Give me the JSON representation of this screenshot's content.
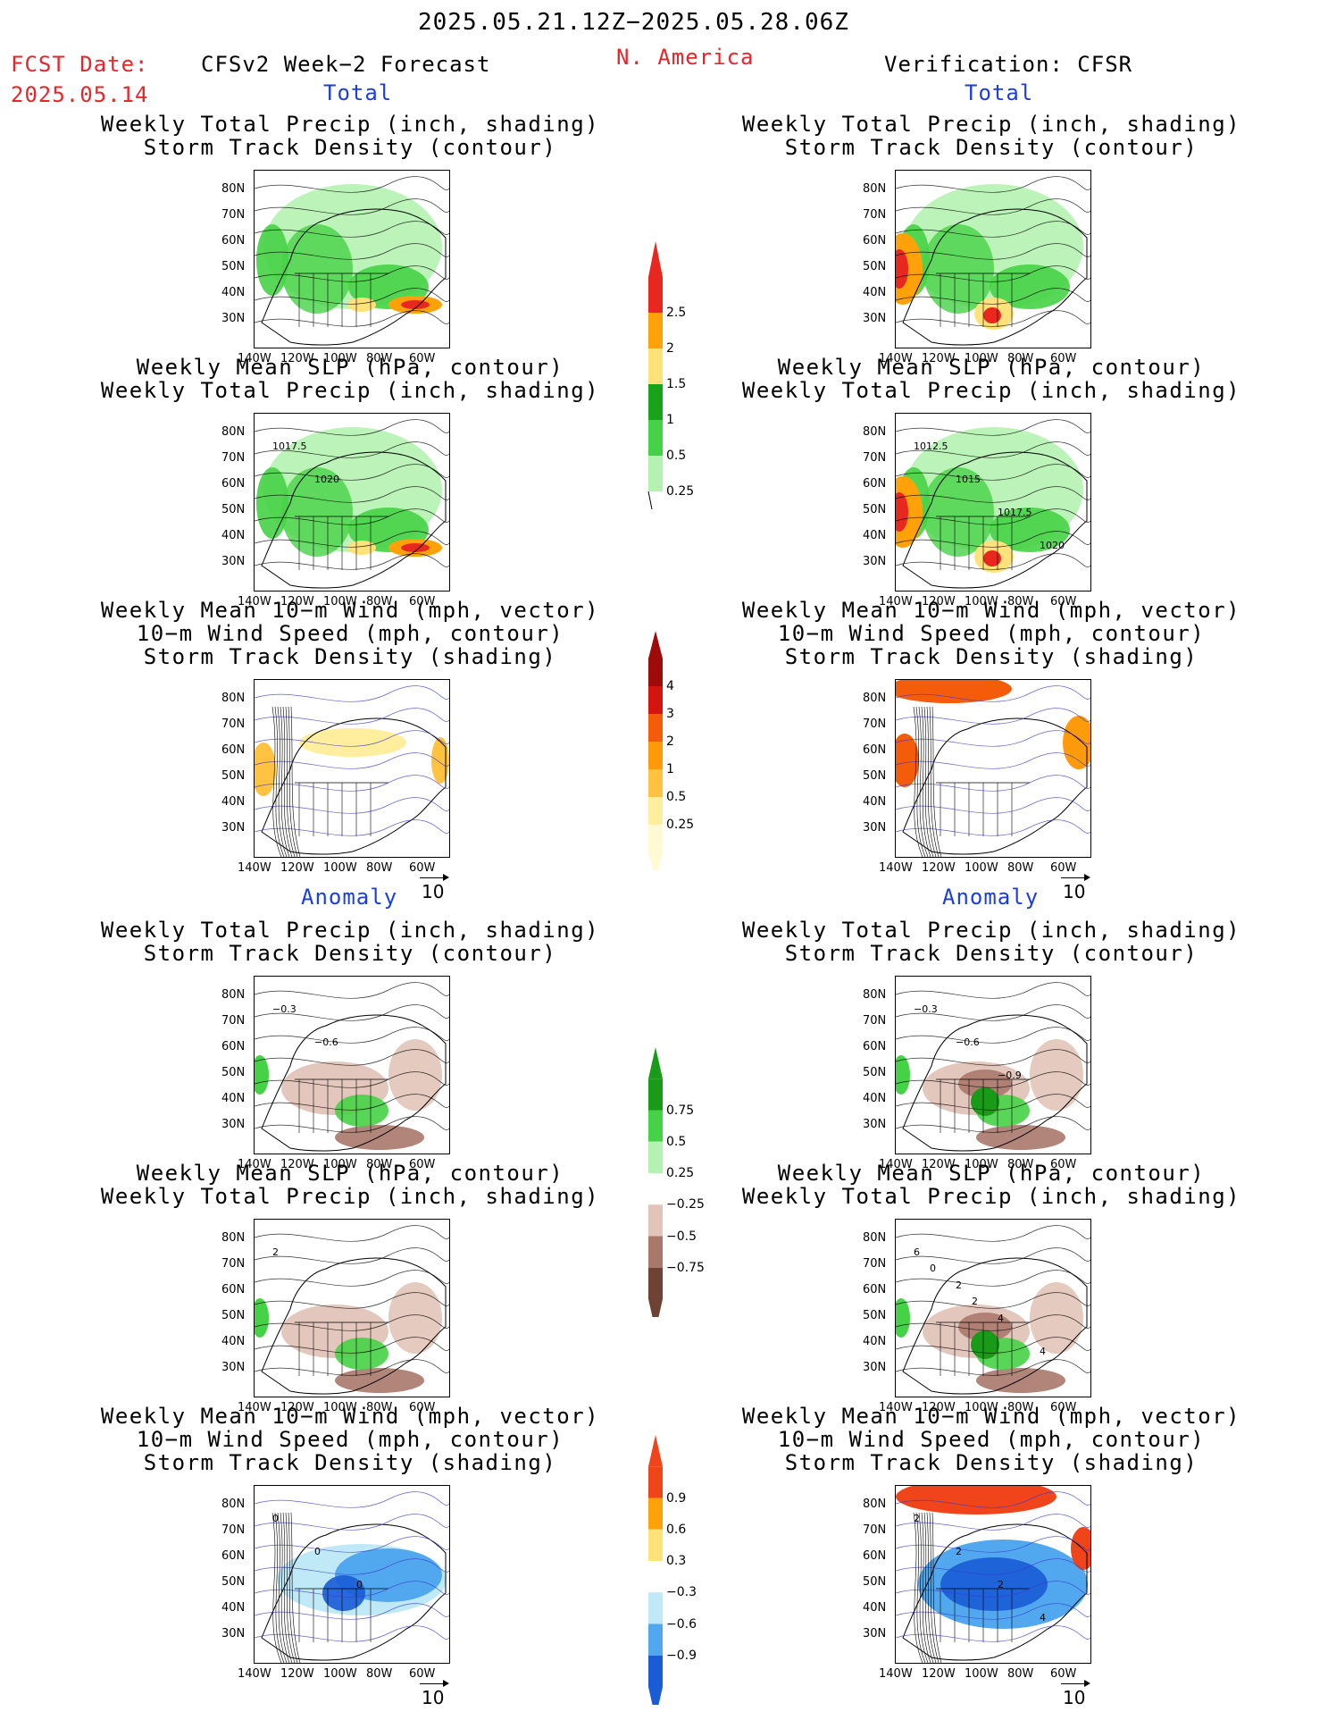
{
  "header": {
    "date_range": "2025.05.21.12Z−2025.05.28.06Z",
    "fcst_label": "FCST Date:",
    "fcst_date": "2025.05.14",
    "forecast_title": "CFSv2 Week−2 Forecast",
    "region": "N. America",
    "verification": "Verification: CFSR"
  },
  "sections": {
    "total": "Total",
    "anomaly": "Anomaly"
  },
  "panel_titles": {
    "precip_storm": [
      "Weekly Total Precip (inch, shading)",
      "Storm Track Density (contour)"
    ],
    "slp_precip": [
      "Weekly Mean SLP (hPa, contour)",
      "Weekly Total Precip (inch, shading)"
    ],
    "wind_storm": [
      "Weekly Mean 10−m Wind (mph, vector)",
      "10−m Wind Speed (mph, contour)",
      "Storm Track Density (shading)"
    ]
  },
  "axes": {
    "lat_ticks": [
      "80N",
      "70N",
      "60N",
      "50N",
      "40N",
      "30N"
    ],
    "lon_ticks": [
      "140W",
      "120W",
      "100W",
      "80W",
      "60W"
    ]
  },
  "vector_ref": "10",
  "contour_labels": {
    "total_slp_fcst": [
      "1017.5",
      "1020"
    ],
    "total_slp_obs": [
      "1012.5",
      "1015",
      "1017.5",
      "1020"
    ],
    "anom_precip_fcst": [
      "−0.3",
      "−0.6"
    ],
    "anom_precip_obs": [
      "−0.3",
      "−0.6",
      "−0.9"
    ],
    "anom_slp_fcst": [
      "2"
    ],
    "anom_slp_obs": [
      "6",
      "2",
      "4",
      "4",
      "0",
      "2"
    ],
    "anom_wind_fcst": [
      "0",
      "0",
      "0"
    ],
    "anom_wind_obs": [
      "2",
      "2",
      "2",
      "4"
    ]
  },
  "colorbars": {
    "precip_total": {
      "labels": [
        "2.5",
        "2",
        "1.5",
        "1",
        "0.5",
        "0.25"
      ],
      "colors": [
        "#e8281e",
        "#ffa20a",
        "#ffe27a",
        "#1aa319",
        "#46d246",
        "#b5f2b1"
      ]
    },
    "storm_total": {
      "labels": [
        "4",
        "3",
        "2",
        "1",
        "0.5",
        "0.25"
      ],
      "colors": [
        "#9e0b0b",
        "#d4140e",
        "#f55c0a",
        "#ff9a0a",
        "#ffc341",
        "#ffee9e",
        "#fff9d4"
      ]
    },
    "precip_anom": {
      "labels": [
        "0.75",
        "0.5",
        "0.25",
        "−0.25",
        "−0.5",
        "−0.75"
      ],
      "colors": [
        "#1a9a19",
        "#46d246",
        "#b5f2b1",
        "#ffffff",
        "#e2c4b8",
        "#a8786a",
        "#6e4334"
      ]
    },
    "storm_anom": {
      "labels": [
        "0.9",
        "0.6",
        "0.3",
        "−0.3",
        "−0.6",
        "−0.9"
      ],
      "colors": [
        "#f0441a",
        "#ffa20a",
        "#ffe27a",
        "#ffffff",
        "#bfe9f7",
        "#52a8ef",
        "#1a5bd6"
      ]
    }
  }
}
